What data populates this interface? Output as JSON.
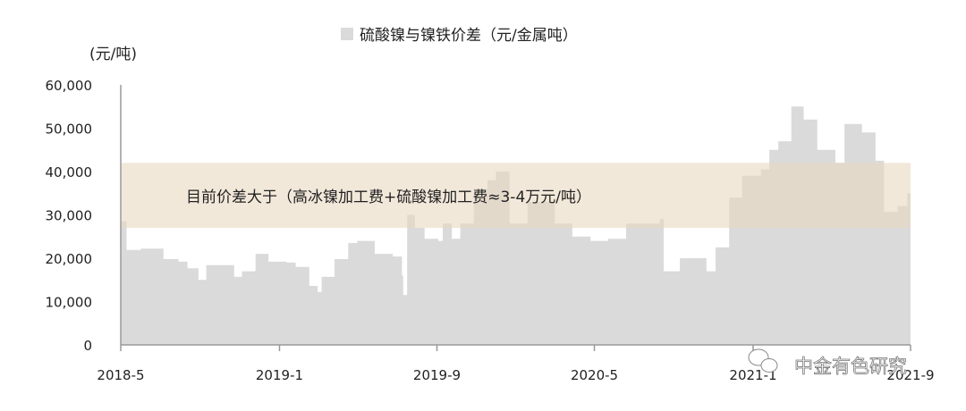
{
  "chart_data": {
    "type": "area",
    "legend": {
      "entries": [
        "硫酸镍与镍铁价差（元/金属吨）"
      ],
      "placement": "top"
    },
    "ylabel": "(元/吨)",
    "ylim": [
      0,
      60000
    ],
    "yticks": [
      0,
      10000,
      20000,
      30000,
      40000,
      50000,
      60000
    ],
    "ytick_labels": [
      "0",
      "10,000",
      "20,000",
      "30,000",
      "40,000",
      "50,000",
      "60,000"
    ],
    "xlim": [
      "2018-05-01",
      "2021-09-01"
    ],
    "xticks": [
      "2018-05-01",
      "2019-01-01",
      "2019-09-01",
      "2020-05-01",
      "2021-01-01",
      "2021-09-01"
    ],
    "xtick_labels": [
      "2018-5",
      "2019-1",
      "2019-9",
      "2020-5",
      "2021-1",
      "2021-9"
    ],
    "grid": false,
    "colors": {
      "area": "#dadada",
      "band": "#ead9c2",
      "axis": "#999999"
    },
    "band": {
      "range": [
        27000,
        42000
      ],
      "label": "目前价差大于（高冰镍加工费+硫酸镍加工费≈3-4万元/吨）"
    },
    "series": [
      {
        "name": "硫酸镍与镍铁价差（元/金属吨）",
        "x": [
          "2018-05-01",
          "2018-05-10",
          "2018-06-01",
          "2018-07-01",
          "2018-07-06",
          "2018-07-29",
          "2018-08-12",
          "2018-08-29",
          "2018-09-10",
          "2018-10-20",
          "2018-10-23",
          "2018-11-04",
          "2018-11-25",
          "2018-12-15",
          "2019-01-12",
          "2019-01-26",
          "2019-02-16",
          "2019-03-01",
          "2019-03-07",
          "2019-03-27",
          "2019-04-17",
          "2019-05-01",
          "2019-05-28",
          "2019-06-25",
          "2019-07-09",
          "2019-07-11",
          "2019-07-17",
          "2019-07-29",
          "2019-08-13",
          "2019-09-03",
          "2019-09-10",
          "2019-09-24",
          "2019-10-07",
          "2019-10-28",
          "2019-11-18",
          "2019-12-01",
          "2019-12-22",
          "2020-01-19",
          "2020-03-01",
          "2020-03-28",
          "2020-04-25",
          "2020-05-22",
          "2020-06-19",
          "2020-08-10",
          "2020-08-16",
          "2020-09-10",
          "2020-10-21",
          "2020-11-04",
          "2020-11-25",
          "2020-12-15",
          "2021-01-13",
          "2021-01-26",
          "2021-02-09",
          "2021-03-01",
          "2021-03-20",
          "2021-04-10",
          "2021-05-08",
          "2021-05-22",
          "2021-06-18",
          "2021-07-09",
          "2021-07-22",
          "2021-08-12",
          "2021-08-27",
          "2021-09-01"
        ],
        "values": [
          28500,
          21900,
          22200,
          22200,
          19800,
          19200,
          17700,
          15000,
          18400,
          18400,
          15700,
          17000,
          21000,
          19200,
          19000,
          18000,
          13600,
          12200,
          15700,
          19800,
          23500,
          24000,
          21000,
          20400,
          16000,
          11500,
          30000,
          27000,
          24500,
          24000,
          28000,
          24500,
          28000,
          36000,
          38000,
          40000,
          28000,
          33000,
          28000,
          25000,
          24000,
          24500,
          28000,
          29000,
          17000,
          20000,
          17000,
          22500,
          34000,
          39000,
          40500,
          45000,
          47000,
          55000,
          52000,
          45000,
          42000,
          51000,
          49000,
          42500,
          30700,
          32000,
          35000,
          33000
        ]
      }
    ]
  },
  "watermark": "中金有色研究"
}
